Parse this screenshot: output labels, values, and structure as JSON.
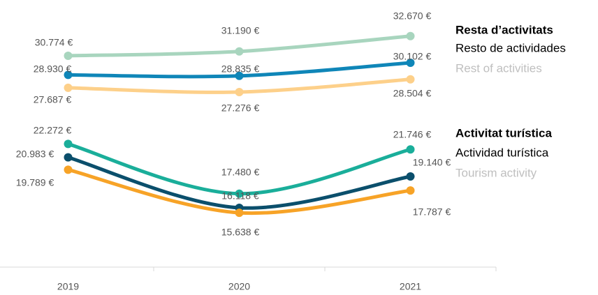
{
  "chart_data": {
    "type": "line",
    "categories": [
      "2019",
      "2020",
      "2021"
    ],
    "ylim": [
      10400,
      36150
    ],
    "series": [
      {
        "color": "#a8d5be",
        "values": [
          30774,
          31190,
          32670
        ],
        "value_labels": [
          "30.774 €",
          "31.190 €",
          "32.670 €"
        ]
      },
      {
        "color": "#0f86b8",
        "values": [
          28930,
          28835,
          30102
        ],
        "value_labels": [
          "28.930 €",
          "28.835 €",
          "30.102 €"
        ]
      },
      {
        "color": "#fdd08a",
        "values": [
          27687,
          27276,
          28504
        ],
        "value_labels": [
          "27.687 €",
          "27.276 €",
          "28.504 €"
        ]
      },
      {
        "color": "#1aae9a",
        "values": [
          22272,
          17480,
          21746
        ],
        "value_labels": [
          "22.272 €",
          "17.480 €",
          "21.746 €"
        ]
      },
      {
        "color": "#0b4f6c",
        "values": [
          20983,
          16118,
          19140
        ],
        "value_labels": [
          "20.983 €",
          "16.118 €",
          "19.140 €"
        ]
      },
      {
        "color": "#f7a327",
        "values": [
          19789,
          15638,
          17787
        ],
        "value_labels": [
          "19.789 €",
          "15.638 €",
          "17.787 €"
        ]
      }
    ],
    "legend_groups": [
      {
        "lines": [
          "Resta d’activitats",
          "Resto de actividades",
          "Rest of activities"
        ]
      },
      {
        "lines": [
          "Activitat turística",
          "Actividad turística",
          "Tourism activity"
        ]
      }
    ]
  }
}
